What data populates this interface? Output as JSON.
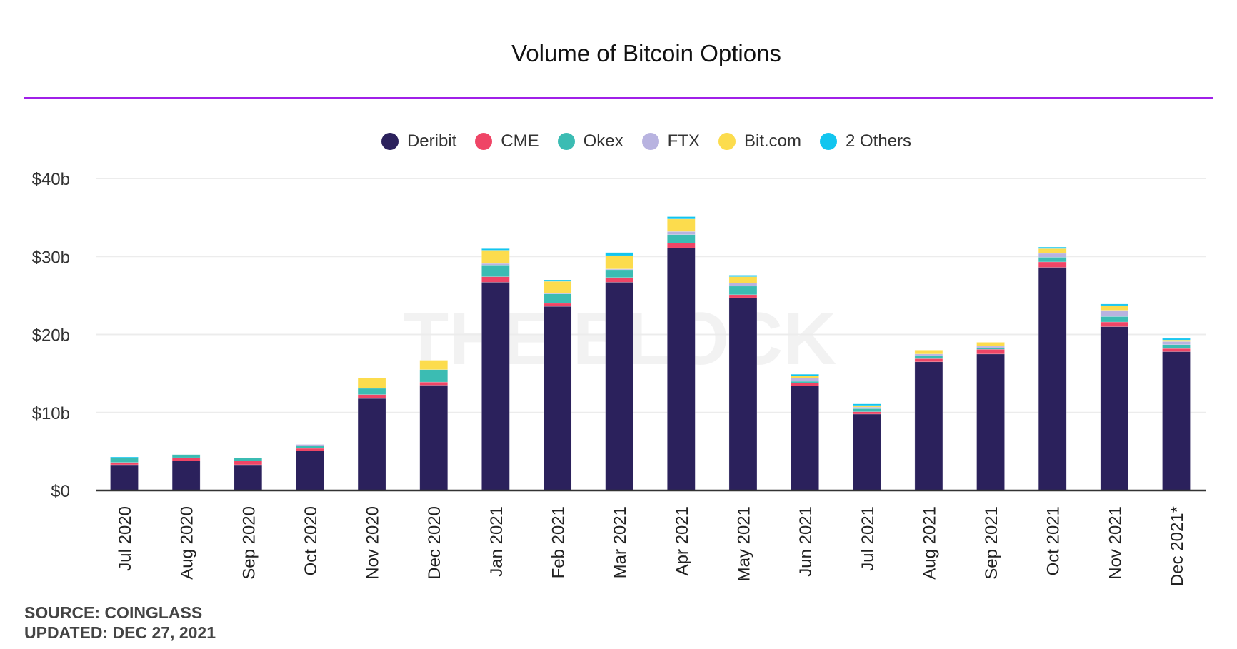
{
  "chart_data": {
    "type": "bar",
    "stacked": true,
    "title": "Volume of Bitcoin Options",
    "xlabel": "",
    "ylabel": "",
    "ylim": [
      0,
      40
    ],
    "yticks": [
      0,
      10,
      20,
      30,
      40
    ],
    "ytick_labels": [
      "$0",
      "$10b",
      "$20b",
      "$30b",
      "$40b"
    ],
    "grid": true,
    "legend_position": "top",
    "categories": [
      "Jul 2020",
      "Aug 2020",
      "Sep 2020",
      "Oct 2020",
      "Nov 2020",
      "Dec 2020",
      "Jan 2021",
      "Feb 2021",
      "Mar 2021",
      "Apr 2021",
      "May 2021",
      "Jun 2021",
      "Jul 2021",
      "Aug 2021",
      "Sep 2021",
      "Oct 2021",
      "Nov 2021",
      "Dec 2021*"
    ],
    "series": [
      {
        "name": "Deribit",
        "color": "#2b215c",
        "values": [
          3.3,
          3.8,
          3.3,
          5.1,
          11.8,
          13.5,
          26.7,
          23.6,
          26.7,
          31.1,
          24.7,
          13.4,
          9.8,
          16.5,
          17.5,
          28.6,
          21.0,
          17.8
        ]
      },
      {
        "name": "CME",
        "color": "#ef4566",
        "values": [
          0.3,
          0.4,
          0.5,
          0.3,
          0.5,
          0.4,
          0.7,
          0.4,
          0.6,
          0.6,
          0.4,
          0.4,
          0.3,
          0.4,
          0.6,
          0.7,
          0.6,
          0.4
        ]
      },
      {
        "name": "Okex",
        "color": "#3bbcb3",
        "values": [
          0.6,
          0.4,
          0.4,
          0.3,
          0.8,
          1.6,
          1.5,
          1.2,
          1.0,
          1.1,
          1.1,
          0.2,
          0.4,
          0.4,
          0.2,
          0.6,
          0.7,
          0.5
        ]
      },
      {
        "name": "FTX",
        "color": "#b8b3e0",
        "values": [
          0.0,
          0.0,
          0.0,
          0.2,
          0.0,
          0.0,
          0.2,
          0.1,
          0.1,
          0.4,
          0.4,
          0.4,
          0.2,
          0.2,
          0.2,
          0.5,
          0.8,
          0.4
        ]
      },
      {
        "name": "Bit.com",
        "color": "#fcdc4d",
        "values": [
          0.0,
          0.0,
          0.0,
          0.0,
          1.3,
          1.2,
          1.7,
          1.5,
          1.7,
          1.6,
          0.8,
          0.3,
          0.2,
          0.5,
          0.5,
          0.6,
          0.6,
          0.2
        ]
      },
      {
        "name": "2 Others",
        "color": "#12c5ef",
        "values": [
          0.1,
          0.0,
          0.0,
          0.0,
          0.0,
          0.0,
          0.2,
          0.2,
          0.4,
          0.3,
          0.2,
          0.2,
          0.2,
          0.0,
          0.0,
          0.2,
          0.2,
          0.2
        ]
      }
    ]
  },
  "watermark": "THE BLOCK",
  "footer": {
    "source": "SOURCE: COINGLASS",
    "updated": "UPDATED: DEC 27, 2021"
  }
}
